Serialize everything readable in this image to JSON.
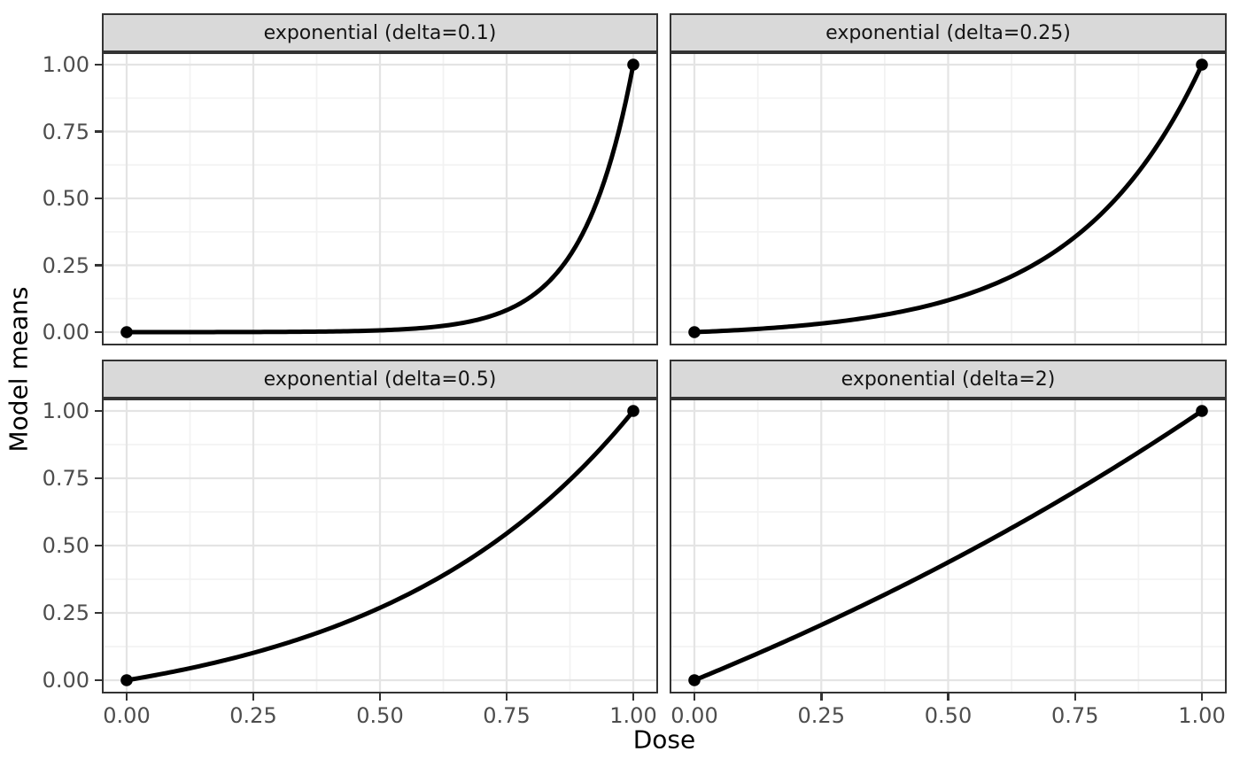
{
  "chart_data": {
    "type": "line",
    "title": "",
    "xlabel": "Dose",
    "ylabel": "Model means",
    "xlim": [
      0,
      1
    ],
    "ylim": [
      0,
      1
    ],
    "grid": "on",
    "legend": "none",
    "x_ticks": {
      "values": [
        0,
        0.25,
        0.5,
        0.75,
        1
      ],
      "labels": [
        "0.00",
        "0.25",
        "0.50",
        "0.75",
        "1.00"
      ]
    },
    "y_ticks": {
      "values": [
        0,
        0.25,
        0.5,
        0.75,
        1
      ],
      "labels": [
        "1.00",
        "0.75",
        "0.50",
        "0.25",
        "0.00"
      ],
      "labels_bottom_up": [
        "0.00",
        "0.25",
        "0.50",
        "0.75",
        "1.00"
      ]
    },
    "minor_breaks": [
      0.125,
      0.375,
      0.625,
      0.875
    ],
    "curve_formula": "y = (exp(x/delta) - 1) / (exp(1/delta) - 1)",
    "x_samples": [
      0,
      0.1,
      0.2,
      0.3,
      0.4,
      0.5,
      0.6,
      0.7,
      0.8,
      0.9,
      1
    ],
    "facets": [
      {
        "label": "exponential (delta=0.1)",
        "delta": 0.1,
        "y_samples": [
          0,
          0.0001,
          0.0003,
          0.0009,
          0.0024,
          0.0067,
          0.0183,
          0.0497,
          0.1353,
          0.3679,
          1
        ],
        "endpoint_dots": [
          [
            0,
            0
          ],
          [
            1,
            1
          ]
        ]
      },
      {
        "label": "exponential (delta=0.25)",
        "delta": 0.25,
        "y_samples": [
          0,
          0.0092,
          0.0229,
          0.0433,
          0.0738,
          0.1192,
          0.187,
          0.2882,
          0.4391,
          0.6642,
          1
        ],
        "endpoint_dots": [
          [
            0,
            0
          ],
          [
            1,
            1
          ]
        ]
      },
      {
        "label": "exponential (delta=0.5)",
        "delta": 0.5,
        "y_samples": [
          0,
          0.0347,
          0.077,
          0.1287,
          0.1918,
          0.2689,
          0.3631,
          0.4782,
          0.6187,
          0.7903,
          1
        ],
        "endpoint_dots": [
          [
            0,
            0
          ],
          [
            1,
            1
          ]
        ]
      },
      {
        "label": "exponential (delta=2)",
        "delta": 2,
        "y_samples": [
          0,
          0.079,
          0.1621,
          0.2495,
          0.3413,
          0.4378,
          0.5393,
          0.646,
          0.7581,
          0.8761,
          1
        ],
        "endpoint_dots": [
          [
            0,
            0
          ],
          [
            1,
            1
          ]
        ]
      }
    ],
    "style": {
      "line_color": "#000000",
      "line_width": 5,
      "point_radius": 6.8,
      "point_color": "#000000",
      "panel_bg": "#FFFFFF",
      "panel_border": "#333333",
      "strip_fill": "#D9D9D9",
      "strip_border": "#333333",
      "strip_text_color": "#141414",
      "grid_major_color": "#E4E4E4",
      "grid_minor_color": "#F2F2F2",
      "tick_mark_color": "#333333",
      "tick_label_color": "#4D4D4D",
      "axis_title_color": "#000000"
    }
  }
}
